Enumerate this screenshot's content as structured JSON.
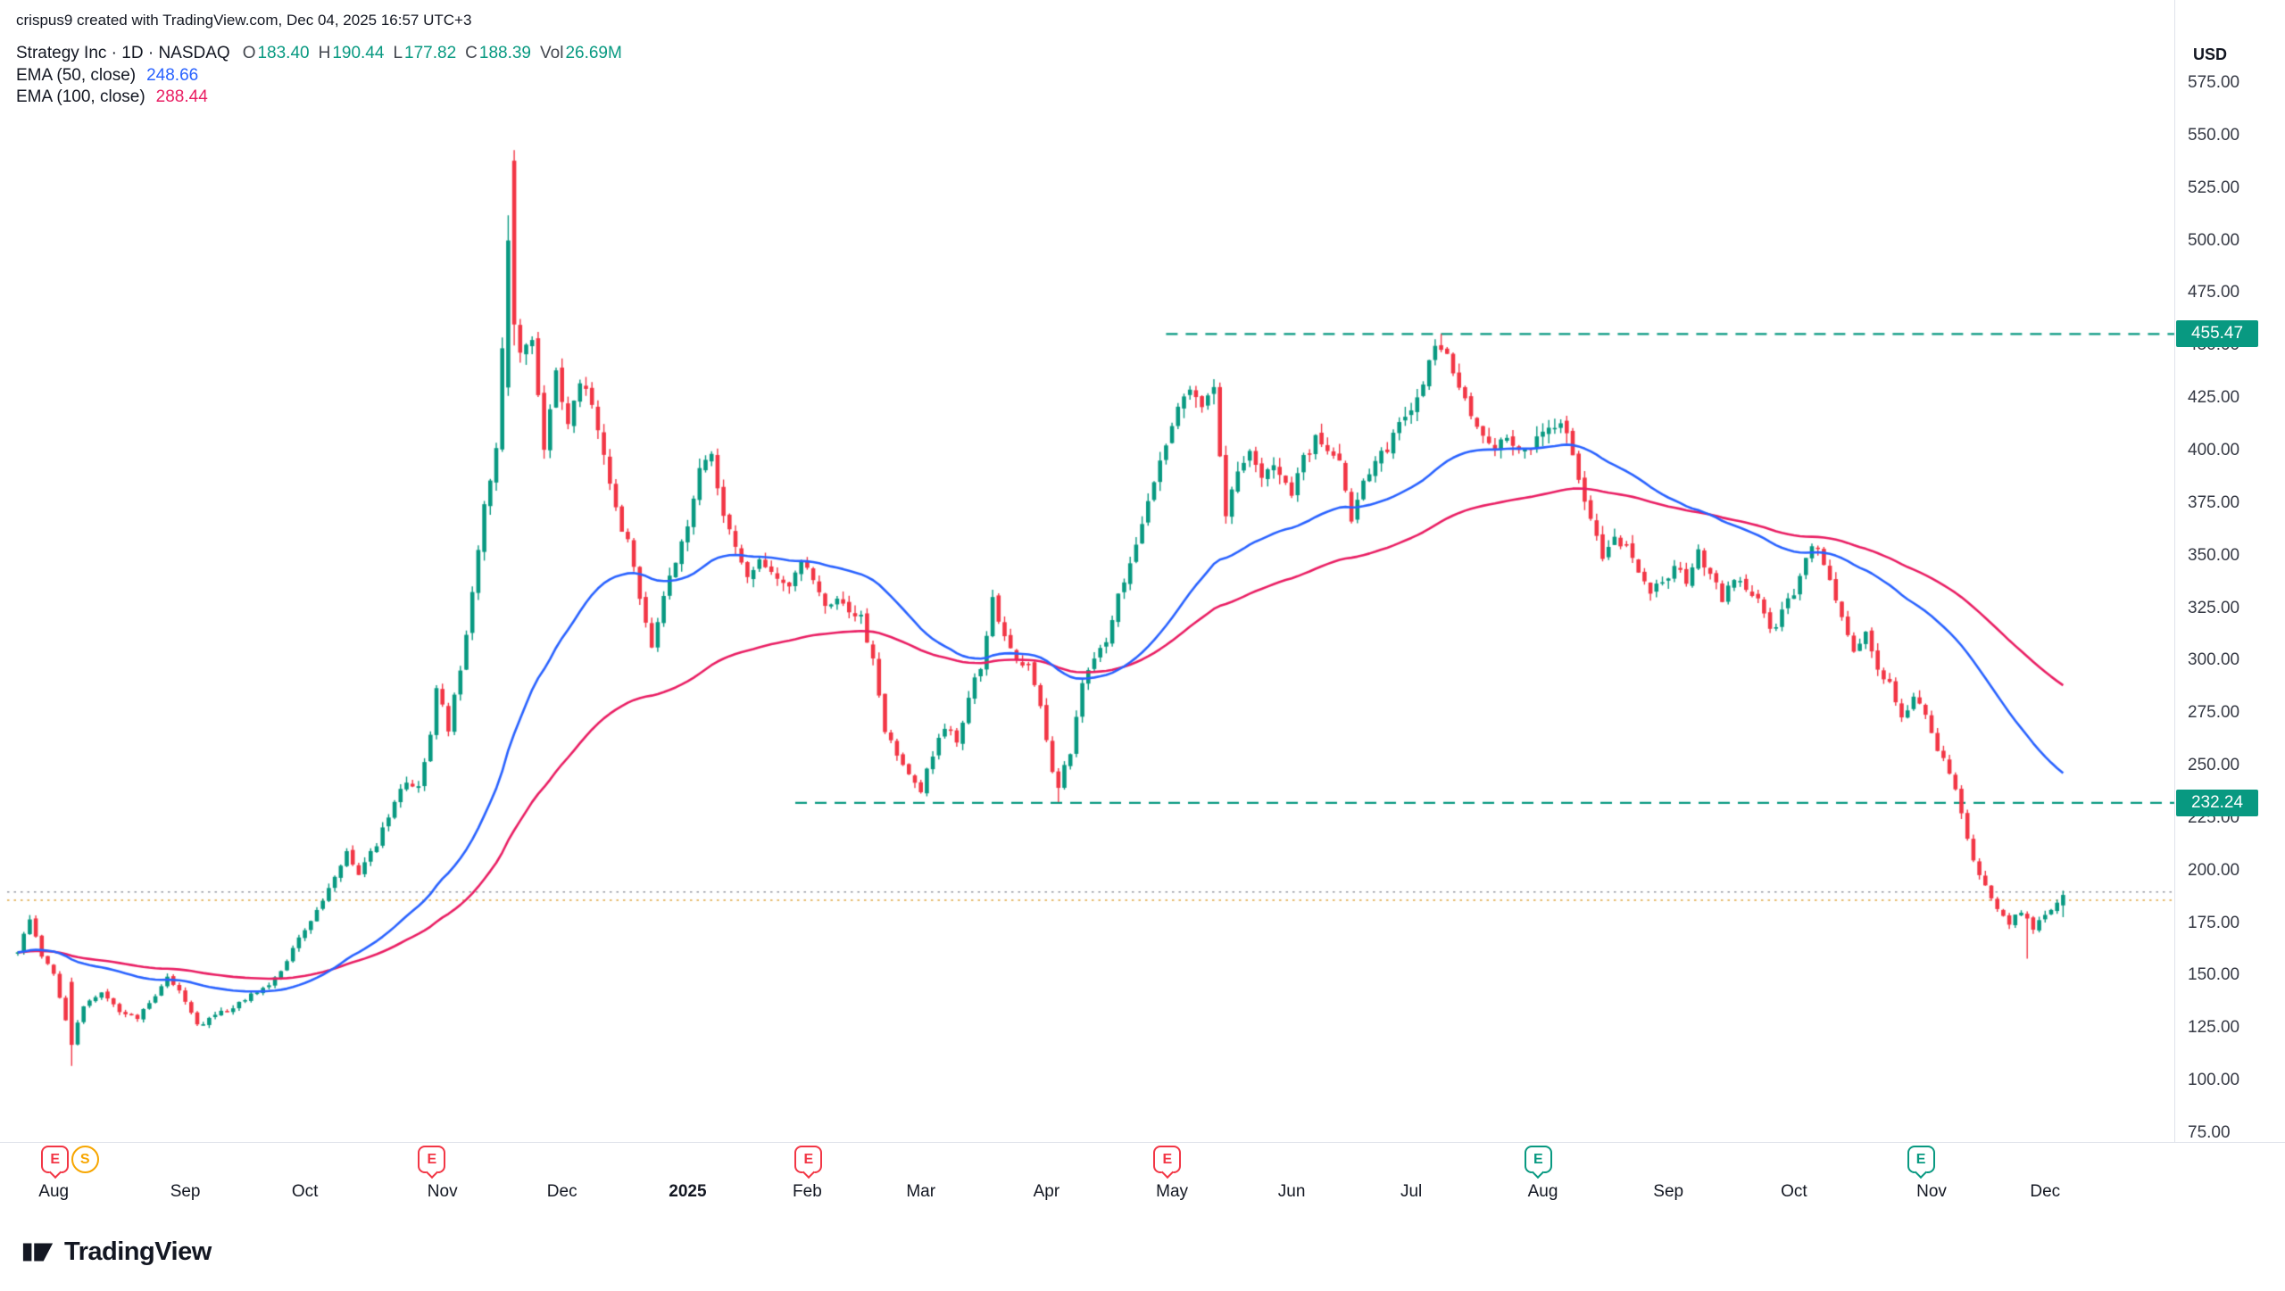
{
  "meta": {
    "watermark": "crispus9 created with TradingView.com, Dec 04, 2025 16:57 UTC+3",
    "logo_text": "TradingView"
  },
  "legend": {
    "symbol_line": "Strategy Inc · 1D · NASDAQ",
    "ohlc": {
      "o_label": "O",
      "o": "183.40",
      "h_label": "H",
      "h": "190.44",
      "l_label": "L",
      "l": "177.82",
      "c_label": "C",
      "c": "188.39",
      "vol_label": "Vol",
      "vol": "26.69M"
    },
    "ema50_label": "EMA (50, close)",
    "ema50_value": "248.66",
    "ema100_label": "EMA (100, close)",
    "ema100_value": "288.44"
  },
  "axis": {
    "currency": "USD",
    "y_step": 25,
    "months": [
      {
        "label": "Aug",
        "day": 6
      },
      {
        "label": "Sep",
        "day": 28
      },
      {
        "label": "Oct",
        "day": 48
      },
      {
        "label": "Nov",
        "day": 71
      },
      {
        "label": "Dec",
        "day": 91
      },
      {
        "label": "2025",
        "day": 112,
        "bold": true
      },
      {
        "label": "Feb",
        "day": 132
      },
      {
        "label": "Mar",
        "day": 151
      },
      {
        "label": "Apr",
        "day": 172
      },
      {
        "label": "May",
        "day": 193
      },
      {
        "label": "Jun",
        "day": 213
      },
      {
        "label": "Jul",
        "day": 233
      },
      {
        "label": "Aug",
        "day": 255
      },
      {
        "label": "Sep",
        "day": 276
      },
      {
        "label": "Oct",
        "day": 297
      },
      {
        "label": "Nov",
        "day": 320
      },
      {
        "label": "Dec",
        "day": 339
      }
    ]
  },
  "levels": {
    "resistance": 455.47,
    "resistance_label": "455.47",
    "resistance_start_day": 192,
    "support": 232.24,
    "support_label": "232.24",
    "support_start_day": 130
  },
  "dotted_lines": [
    {
      "price": 189.8,
      "color": "#9598a1"
    },
    {
      "price": 185.9,
      "color": "#dfa53f"
    }
  ],
  "events": [
    {
      "label": "E",
      "day": 6,
      "color": "#f23645",
      "shape": "square"
    },
    {
      "label": "S",
      "day": 11,
      "color": "#f7a600",
      "shape": "circle"
    },
    {
      "label": "E",
      "day": 69,
      "color": "#f23645",
      "shape": "square"
    },
    {
      "label": "E",
      "day": 132,
      "color": "#f23645",
      "shape": "square"
    },
    {
      "label": "E",
      "day": 192,
      "color": "#f23645",
      "shape": "square"
    },
    {
      "label": "E",
      "day": 254,
      "color": "#089981",
      "shape": "square"
    },
    {
      "label": "E",
      "day": 318,
      "color": "#089981",
      "shape": "square"
    }
  ],
  "colors": {
    "up": "#089981",
    "down": "#f23645",
    "ema50": "#2962ff",
    "ema100": "#e91e63",
    "level": "#089981",
    "axis_text": "#363a45",
    "border": "#e0e3eb",
    "text": "#131722"
  },
  "chart_data": {
    "type": "candlestick",
    "title": "Strategy Inc daily candlestick chart with EMA 50 and EMA 100",
    "symbol": "Strategy Inc",
    "interval": "1D",
    "exchange": "NASDAQ",
    "currency": "USD",
    "last_ohlc": {
      "open": 183.4,
      "high": 190.44,
      "low": 177.82,
      "close": 188.39,
      "volume": "26.69M"
    },
    "overlays": [
      {
        "name": "EMA (50, close)",
        "value": 248.66,
        "color": "#2962ff"
      },
      {
        "name": "EMA (100, close)",
        "value": 288.44,
        "color": "#e91e63"
      }
    ],
    "key_levels": [
      455.47,
      232.24
    ],
    "ylim": [
      75,
      575
    ],
    "x_range": [
      "Aug 2024",
      "Dec 2025"
    ],
    "price_path": [
      [
        0,
        162
      ],
      [
        2,
        176
      ],
      [
        4,
        160
      ],
      [
        6,
        150
      ],
      [
        8,
        128
      ],
      [
        9,
        118
      ],
      [
        11,
        136
      ],
      [
        14,
        141
      ],
      [
        17,
        133
      ],
      [
        20,
        130
      ],
      [
        22,
        137
      ],
      [
        25,
        149
      ],
      [
        27,
        143
      ],
      [
        30,
        126
      ],
      [
        33,
        131
      ],
      [
        36,
        135
      ],
      [
        39,
        141
      ],
      [
        42,
        146
      ],
      [
        44,
        152
      ],
      [
        46,
        163
      ],
      [
        49,
        176
      ],
      [
        52,
        191
      ],
      [
        55,
        208
      ],
      [
        57,
        198
      ],
      [
        60,
        213
      ],
      [
        63,
        233
      ],
      [
        65,
        243
      ],
      [
        67,
        239
      ],
      [
        69,
        263
      ],
      [
        70,
        287
      ],
      [
        72,
        268
      ],
      [
        74,
        296
      ],
      [
        76,
        331
      ],
      [
        78,
        372
      ],
      [
        80,
        402
      ],
      [
        82,
        500
      ],
      [
        83,
        460
      ],
      [
        84,
        448
      ],
      [
        86,
        452
      ],
      [
        88,
        401
      ],
      [
        90,
        438
      ],
      [
        92,
        413
      ],
      [
        94,
        431
      ],
      [
        96,
        424
      ],
      [
        98,
        396
      ],
      [
        100,
        371
      ],
      [
        102,
        356
      ],
      [
        104,
        329
      ],
      [
        106,
        308
      ],
      [
        108,
        331
      ],
      [
        110,
        346
      ],
      [
        112,
        363
      ],
      [
        114,
        393
      ],
      [
        116,
        398
      ],
      [
        118,
        371
      ],
      [
        120,
        352
      ],
      [
        122,
        341
      ],
      [
        124,
        349
      ],
      [
        126,
        343
      ],
      [
        129,
        334
      ],
      [
        131,
        347
      ],
      [
        133,
        338
      ],
      [
        135,
        327
      ],
      [
        137,
        331
      ],
      [
        139,
        322
      ],
      [
        141,
        320
      ],
      [
        143,
        301
      ],
      [
        145,
        267
      ],
      [
        147,
        254
      ],
      [
        149,
        247
      ],
      [
        151,
        238
      ],
      [
        153,
        256
      ],
      [
        155,
        269
      ],
      [
        157,
        261
      ],
      [
        159,
        283
      ],
      [
        161,
        297
      ],
      [
        163,
        329
      ],
      [
        165,
        311
      ],
      [
        167,
        301
      ],
      [
        169,
        297
      ],
      [
        171,
        277
      ],
      [
        173,
        247
      ],
      [
        174,
        241
      ],
      [
        176,
        257
      ],
      [
        178,
        289
      ],
      [
        180,
        301
      ],
      [
        182,
        309
      ],
      [
        184,
        331
      ],
      [
        186,
        346
      ],
      [
        188,
        363
      ],
      [
        190,
        386
      ],
      [
        192,
        403
      ],
      [
        194,
        419
      ],
      [
        196,
        429
      ],
      [
        198,
        421
      ],
      [
        200,
        429
      ],
      [
        202,
        371
      ],
      [
        204,
        389
      ],
      [
        206,
        399
      ],
      [
        208,
        387
      ],
      [
        210,
        391
      ],
      [
        213,
        381
      ],
      [
        215,
        397
      ],
      [
        217,
        405
      ],
      [
        219,
        401
      ],
      [
        221,
        393
      ],
      [
        223,
        366
      ],
      [
        225,
        383
      ],
      [
        227,
        395
      ],
      [
        229,
        401
      ],
      [
        231,
        411
      ],
      [
        233,
        419
      ],
      [
        235,
        433
      ],
      [
        237,
        449
      ],
      [
        239,
        446
      ],
      [
        241,
        430
      ],
      [
        243,
        415
      ],
      [
        245,
        405
      ],
      [
        247,
        399
      ],
      [
        249,
        407
      ],
      [
        251,
        399
      ],
      [
        253,
        403
      ],
      [
        255,
        409
      ],
      [
        257,
        413
      ],
      [
        259,
        411
      ],
      [
        261,
        385
      ],
      [
        263,
        368
      ],
      [
        265,
        349
      ],
      [
        267,
        359
      ],
      [
        269,
        354
      ],
      [
        271,
        342
      ],
      [
        273,
        334
      ],
      [
        275,
        337
      ],
      [
        277,
        345
      ],
      [
        279,
        338
      ],
      [
        281,
        351
      ],
      [
        283,
        341
      ],
      [
        285,
        329
      ],
      [
        287,
        339
      ],
      [
        289,
        335
      ],
      [
        291,
        329
      ],
      [
        293,
        313
      ],
      [
        295,
        323
      ],
      [
        297,
        333
      ],
      [
        299,
        351
      ],
      [
        301,
        355
      ],
      [
        303,
        338
      ],
      [
        305,
        321
      ],
      [
        307,
        303
      ],
      [
        309,
        313
      ],
      [
        311,
        294
      ],
      [
        313,
        288
      ],
      [
        315,
        272
      ],
      [
        317,
        283
      ],
      [
        319,
        276
      ],
      [
        321,
        258
      ],
      [
        323,
        247
      ],
      [
        325,
        228
      ],
      [
        327,
        204
      ],
      [
        329,
        192
      ],
      [
        331,
        182
      ],
      [
        333,
        175
      ],
      [
        335,
        181
      ],
      [
        337,
        173
      ],
      [
        339,
        178
      ],
      [
        341,
        184
      ],
      [
        342,
        188.39
      ]
    ],
    "wick_overrides": [
      {
        "day": 9,
        "open": 147,
        "high": 149,
        "low": 107,
        "close": 117
      },
      {
        "day": 82,
        "open": 430,
        "high": 512,
        "low": 426,
        "close": 500
      },
      {
        "day": 83,
        "open": 538,
        "high": 543,
        "low": 450,
        "close": 460
      },
      {
        "day": 174,
        "low": 232.6
      },
      {
        "day": 238,
        "high": 455.47
      },
      {
        "day": 336,
        "low": 158
      },
      {
        "day": 342,
        "open": 183.4,
        "high": 190.44,
        "low": 177.82,
        "close": 188.39
      }
    ]
  }
}
